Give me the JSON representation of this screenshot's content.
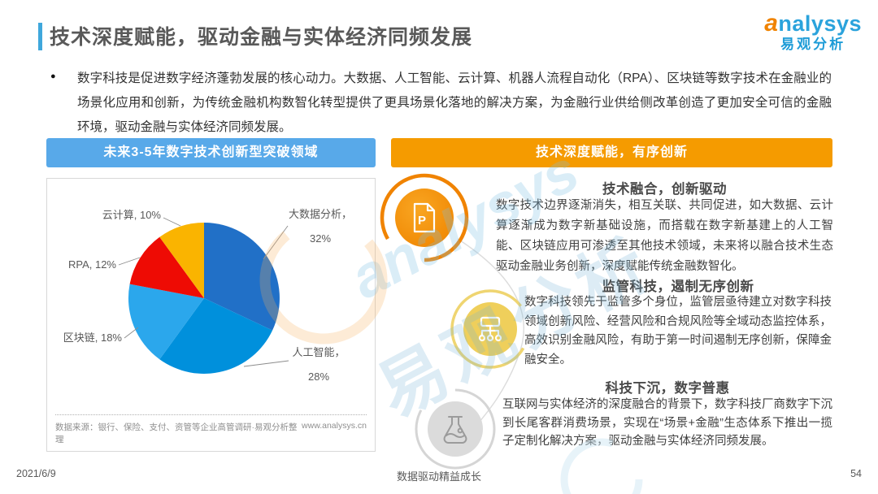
{
  "header": {
    "title": "技术深度赋能，驱动金融与实体经济同频发展",
    "logo": {
      "first_letter": "a",
      "rest": "nalysys",
      "cn": "易观分析"
    }
  },
  "intro": {
    "bullet": "●",
    "text": "数字科技是促进数字经济蓬勃发展的核心动力。大数据、人工智能、云计算、机器人流程自动化（RPA）、区块链等数字技术在金融业的场景化应用和创新，为传统金融机构数智化转型提供了更具场景化落地的解决方案，为金融行业供给侧改革创造了更加安全可信的金融环境，驱动金融与实体经济同频发展。"
  },
  "left_panel": {
    "banner": "未来3-5年数字技术创新型突破领域",
    "source": "数据来源：银行、保险、支付、资管等企业高管调研·易观分析整理",
    "website": "www.analysys.cn"
  },
  "chart_data": {
    "type": "pie",
    "title": "未来3-5年数字技术创新型突破领域",
    "labels": [
      "大数据分析",
      "人工智能",
      "区块链",
      "RPA",
      "云计算"
    ],
    "values": [
      32,
      28,
      18,
      12,
      10
    ],
    "colors": [
      "#2170C7",
      "#0090DC",
      "#2BA7EC",
      "#EE0B04",
      "#FAB400"
    ],
    "start_angle_deg": 0,
    "direction": "clockwise",
    "legend": "none"
  },
  "right_panel": {
    "banner": "技术深度赋能，有序创新",
    "sections": [
      {
        "icon": "document-p-icon",
        "title": "技术融合，创新驱动",
        "body": "数字技术边界逐渐消失，相互关联、共同促进，如大数据、云计算逐渐成为数字新基础设施，而搭载在数字新基建上的人工智能、区块链应用可渗透至其他技术领域，未来将以融合技术生态驱动金融业务创新，深度赋能传统金融数智化。"
      },
      {
        "icon": "org-chart-icon",
        "title": "监管科技，遏制无序创新",
        "body": "数字科技领先于监管多个身位，监管层亟待建立对数字科技领域创新风险、经营风险和合规风险等全域动态监控体系，高效识别金融风险，有助于第一时间遏制无序创新，保障金融安全。"
      },
      {
        "icon": "flask-icon",
        "title": "科技下沉，数字普惠",
        "body": "互联网与实体经济的深度融合的背景下，数字科技厂商数字下沉到长尾客群消费场景，实现在“场景+金融”生态体系下推出一揽子定制化解决方案，驱动金融与实体经济同频发展。"
      }
    ]
  },
  "watermark": {
    "en": "analysys",
    "cn": "易观分析"
  },
  "footer": {
    "date": "2021/6/9",
    "slogan": "数据驱动精益成长",
    "page": "54"
  },
  "theme": {
    "blue": "#58A9E9",
    "orange": "#F59B00",
    "accent": "#3FA7DC"
  }
}
